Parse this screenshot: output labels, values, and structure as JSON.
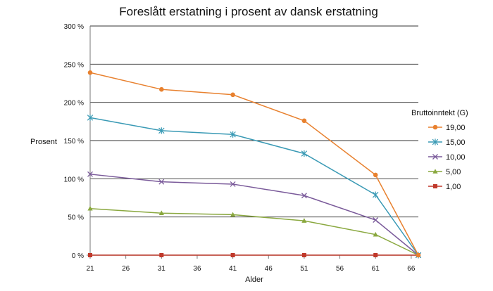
{
  "chart_data": {
    "type": "line",
    "title": "Foreslått erstatning i prosent av dansk erstatning",
    "xlabel": "Alder",
    "ylabel": "Prosent",
    "xlim": [
      21,
      67
    ],
    "ylim": [
      0,
      300
    ],
    "x_ticks": [
      21,
      26,
      31,
      36,
      41,
      46,
      51,
      56,
      61,
      66
    ],
    "y_ticks": [
      0,
      50,
      100,
      150,
      200,
      250,
      300
    ],
    "y_tick_labels": [
      "0 %",
      "50 %",
      "100 %",
      "150 %",
      "200 %",
      "250 %",
      "300 %"
    ],
    "grid": "horizontal",
    "legend_title": "Bruttoinntekt (G)",
    "legend_position": "right",
    "x": [
      21,
      31,
      41,
      51,
      61,
      67
    ],
    "series": [
      {
        "name": "19,00",
        "color": "#e8812f",
        "marker": "circle",
        "values": [
          239,
          217,
          210,
          176,
          105,
          0
        ]
      },
      {
        "name": "15,00",
        "color": "#3a9ab5",
        "marker": "asterisk",
        "values": [
          180,
          163,
          158,
          133,
          79,
          0
        ]
      },
      {
        "name": "10,00",
        "color": "#7a5a9a",
        "marker": "x",
        "values": [
          106,
          96,
          93,
          78,
          46,
          0
        ]
      },
      {
        "name": "5,00",
        "color": "#8aa83f",
        "marker": "triangle",
        "values": [
          61,
          55,
          53,
          45,
          27,
          0
        ]
      },
      {
        "name": "1,00",
        "color": "#c0392b",
        "marker": "square",
        "values": [
          0,
          0,
          0,
          0,
          0,
          0
        ]
      }
    ]
  }
}
